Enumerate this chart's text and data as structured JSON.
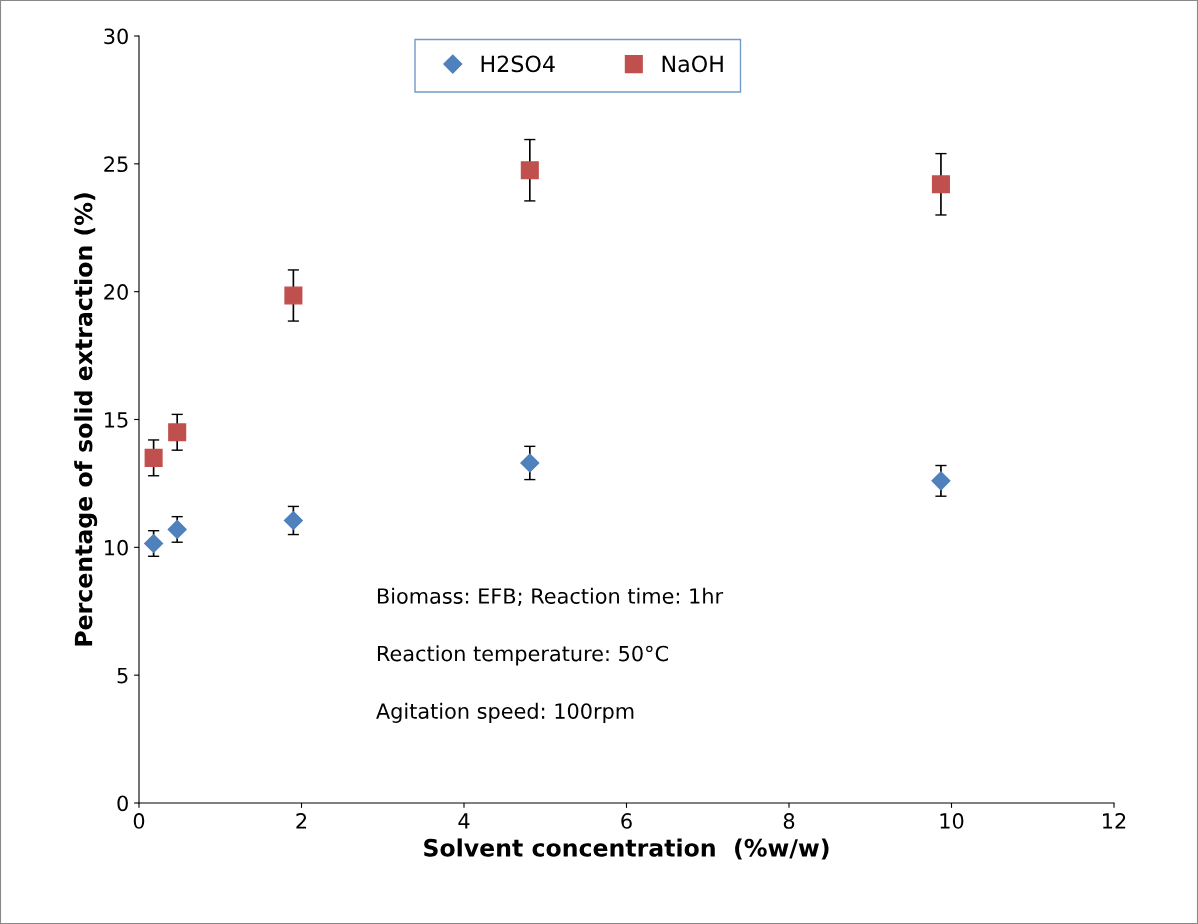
{
  "chart_data": {
    "type": "scatter",
    "xlabel": "Solvent concentration  (%w/w)",
    "ylabel": "Percentage of solid extraction (%)",
    "xlim": [
      0,
      12
    ],
    "xticks": [
      0,
      2,
      4,
      6,
      8,
      10,
      12
    ],
    "ylim": [
      0,
      30
    ],
    "yticks": [
      0,
      5,
      10,
      15,
      20,
      25,
      30
    ],
    "grid": false,
    "legend": "top",
    "series": [
      {
        "name": "H2SO4",
        "color": "#4f81bd",
        "marker": "diamond",
        "x": [
          0.18,
          0.47,
          1.9,
          4.81,
          9.87
        ],
        "values": [
          10.15,
          10.7,
          11.05,
          13.3,
          12.6
        ],
        "errors": [
          0.5,
          0.5,
          0.55,
          0.65,
          0.6
        ]
      },
      {
        "name": "NaOH",
        "color": "#c0504d",
        "marker": "square",
        "x": [
          0.18,
          0.47,
          1.9,
          4.81,
          9.87
        ],
        "values": [
          13.5,
          14.5,
          19.85,
          24.75,
          24.2
        ],
        "errors": [
          0.7,
          0.7,
          1.0,
          1.2,
          1.2
        ]
      }
    ],
    "annotations": [
      "Biomass: EFB; Reaction time: 1hr",
      "Reaction temperature: 50°C",
      "Agitation speed: 100rpm"
    ]
  }
}
